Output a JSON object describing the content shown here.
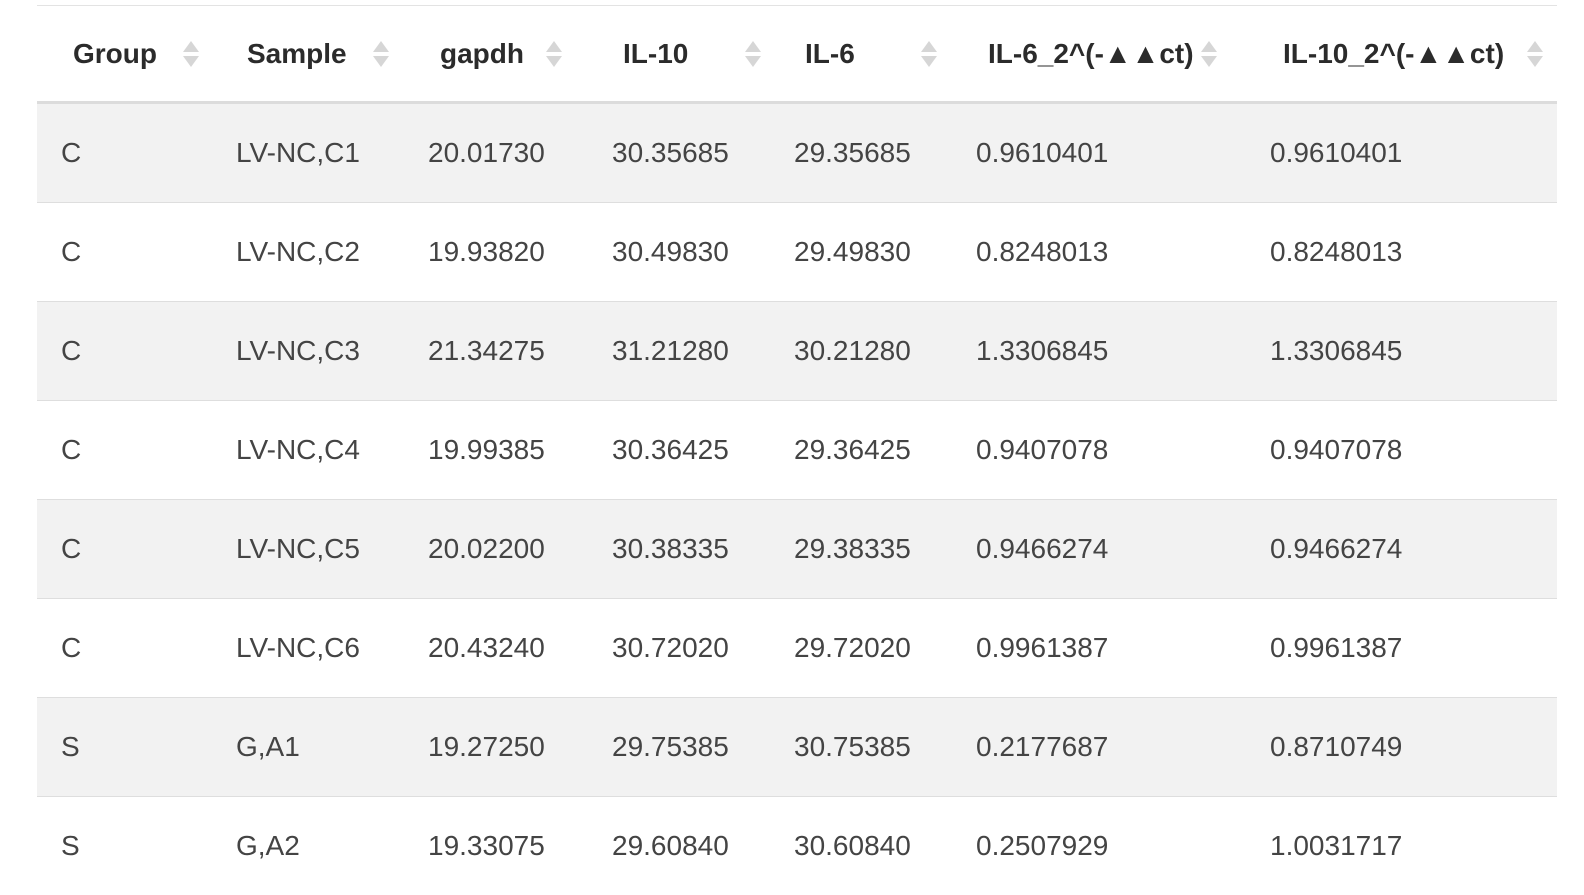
{
  "table": {
    "columns": [
      "Group",
      "Sample",
      "gapdh",
      "IL-10",
      "IL-6",
      "IL-6_2^(-▲▲ct)",
      "IL-10_2^(-▲▲ct)"
    ],
    "rows": [
      [
        "C",
        "LV-NC,C1",
        "20.01730",
        "30.35685",
        "29.35685",
        "0.9610401",
        "0.9610401"
      ],
      [
        "C",
        "LV-NC,C2",
        "19.93820",
        "30.49830",
        "29.49830",
        "0.8248013",
        "0.8248013"
      ],
      [
        "C",
        "LV-NC,C3",
        "21.34275",
        "31.21280",
        "30.21280",
        "1.3306845",
        "1.3306845"
      ],
      [
        "C",
        "LV-NC,C4",
        "19.99385",
        "30.36425",
        "29.36425",
        "0.9407078",
        "0.9407078"
      ],
      [
        "C",
        "LV-NC,C5",
        "20.02200",
        "30.38335",
        "29.38335",
        "0.9466274",
        "0.9466274"
      ],
      [
        "C",
        "LV-NC,C6",
        "20.43240",
        "30.72020",
        "29.72020",
        "0.9961387",
        "0.9961387"
      ],
      [
        "S",
        "G,A1",
        "19.27250",
        "29.75385",
        "30.75385",
        "0.2177687",
        "0.8710749"
      ],
      [
        "S",
        "G,A2",
        "19.33075",
        "29.60840",
        "30.60840",
        "0.2507929",
        "1.0031717"
      ]
    ]
  },
  "colors": {
    "stripe": "#f2f2f2",
    "header_text": "#2b2b2b",
    "cell_text": "#444444",
    "sort_arrow": "#d6d6d6"
  }
}
